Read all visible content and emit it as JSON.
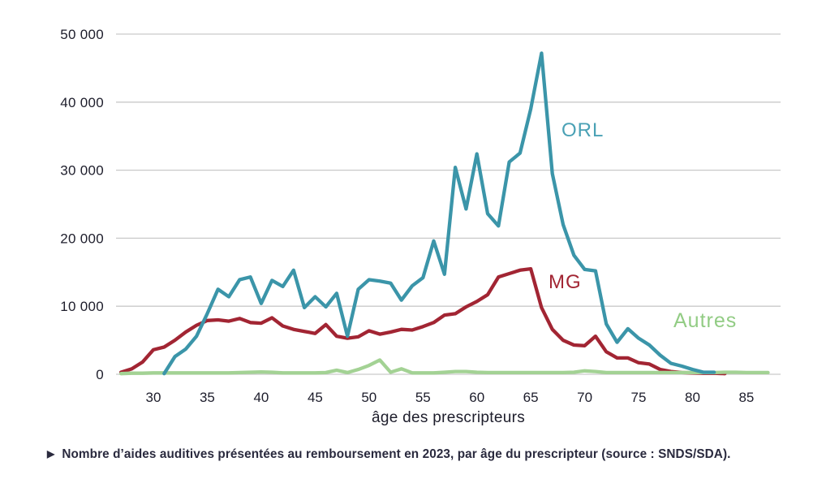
{
  "caption": {
    "bullet": "▶",
    "text": "Nombre d’aides auditives présentées au remboursement en 2023, par âge du prescripteur (source : SNDS/SDA)."
  },
  "chart_data": {
    "type": "line",
    "title": "",
    "xlabel": "âge des prescripteurs",
    "ylabel": "",
    "xlim": [
      26.5,
      88
    ],
    "ylim": [
      0,
      50000
    ],
    "grid": "horizontal",
    "grid_color": "#c9c9c9",
    "tick_color": "#1d1d2b",
    "legend_position": "labels-on-chart",
    "x_step": 1,
    "x_ticks": [
      30,
      35,
      40,
      45,
      50,
      55,
      60,
      65,
      70,
      75,
      80,
      85
    ],
    "y_ticks": [
      {
        "value": 0,
        "label": "0"
      },
      {
        "value": 10000,
        "label": "10 000"
      },
      {
        "value": 20000,
        "label": "20 000"
      },
      {
        "value": 30000,
        "label": "30 000"
      },
      {
        "value": 40000,
        "label": "40 000"
      },
      {
        "value": 50000,
        "label": "50 000"
      }
    ],
    "series": [
      {
        "name": "ORL",
        "color": "#3b95a9",
        "label_color": "#4aa1b5",
        "x_start": 31,
        "values": [
          100,
          2600,
          3700,
          5600,
          8900,
          12500,
          11400,
          13900,
          14300,
          10400,
          13800,
          12900,
          15300,
          9800,
          11400,
          9900,
          11900,
          5600,
          12500,
          13900,
          13700,
          13400,
          10900,
          13000,
          14200,
          19600,
          14700,
          30400,
          24300,
          32400,
          23600,
          21800,
          31200,
          32500,
          39000,
          47200,
          29500,
          22000,
          17500,
          15400,
          15200,
          7400,
          4700,
          6700,
          5300,
          4300,
          2800,
          1600,
          1200,
          700,
          300,
          300
        ]
      },
      {
        "name": "MG",
        "color": "#a22533",
        "label_color": "#a22533",
        "x_start": 27,
        "values": [
          300,
          800,
          1800,
          3600,
          4000,
          5000,
          6200,
          7200,
          7900,
          8000,
          7800,
          8200,
          7600,
          7500,
          8300,
          7100,
          6600,
          6300,
          6000,
          7300,
          5600,
          5300,
          5500,
          6400,
          5900,
          6200,
          6600,
          6500,
          7000,
          7600,
          8700,
          8900,
          9900,
          10700,
          11700,
          14300,
          14800,
          15300,
          15500,
          9800,
          6600,
          5000,
          4300,
          4200,
          5600,
          3300,
          2400,
          2400,
          1700,
          1500,
          700,
          400,
          250,
          200,
          150,
          150,
          100
        ]
      },
      {
        "name": "Autres",
        "color": "#a3d294",
        "label_color": "#92cc84",
        "x_start": 27,
        "values": [
          100,
          150,
          150,
          200,
          200,
          200,
          200,
          200,
          200,
          200,
          200,
          250,
          300,
          350,
          300,
          200,
          200,
          200,
          200,
          250,
          600,
          250,
          700,
          1300,
          2100,
          300,
          800,
          200,
          200,
          200,
          300,
          400,
          400,
          300,
          250,
          250,
          250,
          250,
          250,
          250,
          250,
          250,
          300,
          500,
          400,
          250,
          250,
          250,
          250,
          250,
          250,
          250,
          250,
          250,
          250,
          250,
          300,
          300,
          250,
          250,
          250
        ]
      }
    ]
  }
}
